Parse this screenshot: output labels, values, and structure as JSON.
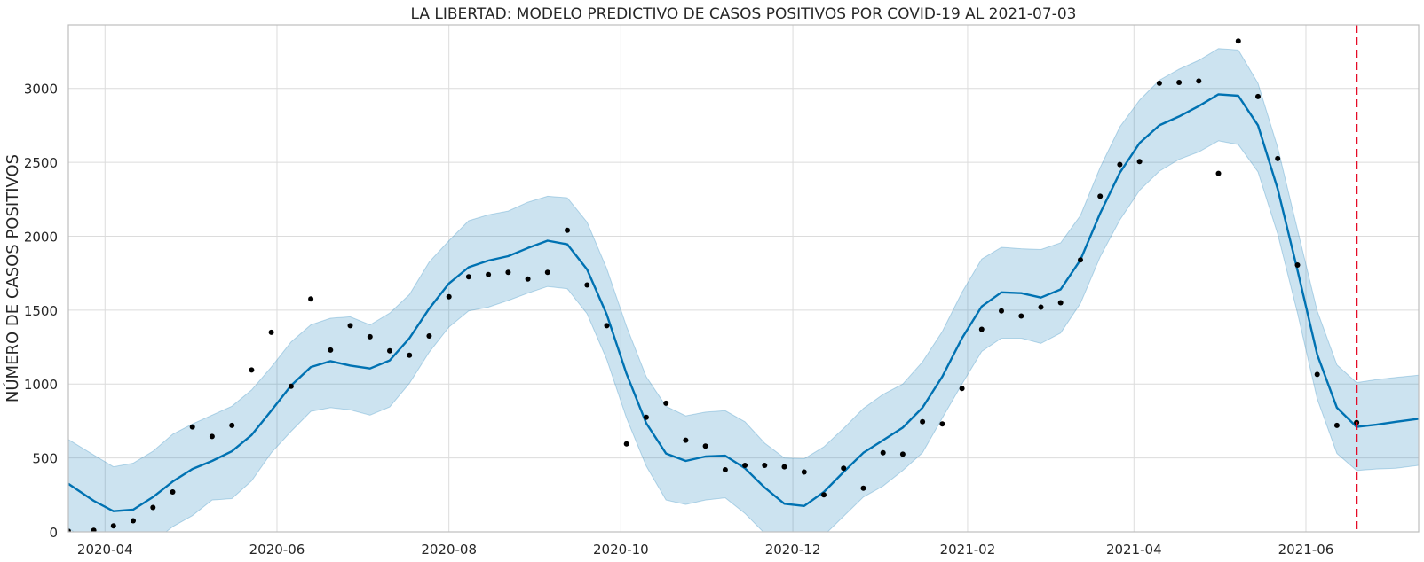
{
  "chart_data": {
    "type": "line",
    "title": "LA LIBERTAD: MODELO PREDICTIVO DE CASOS POSITIVOS POR COVID-19 AL 2021-07-03",
    "xlabel": "",
    "ylabel": "NÚMERO DE CASOS POSITIVOS",
    "x_type": "date",
    "xlim": [
      "2020-03-19",
      "2021-07-11"
    ],
    "ylim": [
      0,
      3430
    ],
    "x_ticks": [
      "2020-04-01",
      "2020-06-01",
      "2020-08-01",
      "2020-10-01",
      "2020-12-01",
      "2021-02-01",
      "2021-04-01",
      "2021-06-01"
    ],
    "x_tick_labels": [
      "2020-04",
      "2020-06",
      "2020-08",
      "2020-10",
      "2020-12",
      "2021-02",
      "2021-04",
      "2021-06"
    ],
    "y_ticks": [
      0,
      500,
      1000,
      1500,
      2000,
      2500,
      3000
    ],
    "y_tick_labels": [
      "0",
      "500",
      "1000",
      "1500",
      "2000",
      "2500",
      "3000"
    ],
    "grid": true,
    "colors": {
      "forecast_line": "#0072b2",
      "uncertainty_band": "#0072b2",
      "observed_points": "#000000",
      "cutoff_line": "#e5001e"
    },
    "cutoff_date": "2021-06-19",
    "forecast": {
      "x": [
        "2020-03-19",
        "2020-03-28",
        "2020-04-04",
        "2020-04-11",
        "2020-04-18",
        "2020-04-25",
        "2020-05-02",
        "2020-05-09",
        "2020-05-16",
        "2020-05-23",
        "2020-05-30",
        "2020-06-06",
        "2020-06-13",
        "2020-06-20",
        "2020-06-27",
        "2020-07-04",
        "2020-07-11",
        "2020-07-18",
        "2020-07-25",
        "2020-08-01",
        "2020-08-08",
        "2020-08-15",
        "2020-08-22",
        "2020-08-29",
        "2020-09-05",
        "2020-09-12",
        "2020-09-19",
        "2020-09-26",
        "2020-10-03",
        "2020-10-10",
        "2020-10-17",
        "2020-10-24",
        "2020-10-31",
        "2020-11-07",
        "2020-11-14",
        "2020-11-21",
        "2020-11-28",
        "2020-12-05",
        "2020-12-12",
        "2020-12-19",
        "2020-12-26",
        "2021-01-02",
        "2021-01-09",
        "2021-01-16",
        "2021-01-23",
        "2021-01-30",
        "2021-02-06",
        "2021-02-13",
        "2021-02-20",
        "2021-02-27",
        "2021-03-06",
        "2021-03-13",
        "2021-03-20",
        "2021-03-27",
        "2021-04-03",
        "2021-04-10",
        "2021-04-17",
        "2021-04-24",
        "2021-05-01",
        "2021-05-08",
        "2021-05-15",
        "2021-05-22",
        "2021-05-29",
        "2021-06-05",
        "2021-06-12",
        "2021-06-19",
        "2021-06-26",
        "2021-07-03",
        "2021-07-11"
      ],
      "yhat": [
        325,
        210,
        140,
        150,
        235,
        340,
        425,
        480,
        545,
        655,
        820,
        990,
        1115,
        1155,
        1125,
        1105,
        1160,
        1310,
        1510,
        1680,
        1790,
        1835,
        1865,
        1920,
        1970,
        1945,
        1775,
        1470,
        1070,
        735,
        530,
        480,
        510,
        515,
        430,
        300,
        190,
        175,
        270,
        405,
        535,
        620,
        705,
        840,
        1050,
        1310,
        1525,
        1620,
        1615,
        1585,
        1640,
        1840,
        2155,
        2430,
        2630,
        2750,
        2810,
        2880,
        2960,
        2950,
        2750,
        2320,
        1770,
        1200,
        840,
        710,
        725,
        745,
        765
      ],
      "yhat_upper": [
        625,
        520,
        440,
        465,
        545,
        660,
        730,
        790,
        850,
        960,
        1115,
        1285,
        1400,
        1445,
        1455,
        1400,
        1480,
        1605,
        1825,
        1970,
        2105,
        2145,
        2170,
        2230,
        2270,
        2260,
        2095,
        1780,
        1390,
        1050,
        850,
        785,
        810,
        820,
        745,
        600,
        500,
        495,
        575,
        700,
        835,
        930,
        1000,
        1150,
        1355,
        1620,
        1845,
        1925,
        1915,
        1910,
        1955,
        2140,
        2465,
        2740,
        2920,
        3055,
        3130,
        3190,
        3270,
        3260,
        3035,
        2600,
        2045,
        1495,
        1130,
        1010,
        1030,
        1045,
        1060
      ],
      "yhat_lower": [
        25,
        -95,
        -150,
        -145,
        -70,
        35,
        110,
        215,
        225,
        345,
        535,
        680,
        815,
        840,
        825,
        790,
        845,
        1005,
        1215,
        1385,
        1495,
        1520,
        1565,
        1615,
        1660,
        1645,
        1475,
        1165,
        770,
        445,
        215,
        185,
        215,
        230,
        125,
        -10,
        -120,
        -130,
        -25,
        105,
        235,
        310,
        415,
        535,
        770,
        1000,
        1220,
        1310,
        1310,
        1275,
        1345,
        1545,
        1860,
        2110,
        2310,
        2440,
        2520,
        2570,
        2645,
        2620,
        2435,
        2015,
        1480,
        900,
        530,
        415,
        425,
        430,
        450
      ]
    },
    "observed": {
      "x": [
        "2020-03-19",
        "2020-03-28",
        "2020-04-04",
        "2020-04-11",
        "2020-04-18",
        "2020-04-25",
        "2020-05-02",
        "2020-05-09",
        "2020-05-16",
        "2020-05-23",
        "2020-05-30",
        "2020-06-06",
        "2020-06-13",
        "2020-06-20",
        "2020-06-27",
        "2020-07-04",
        "2020-07-11",
        "2020-07-18",
        "2020-07-25",
        "2020-08-01",
        "2020-08-08",
        "2020-08-15",
        "2020-08-22",
        "2020-08-29",
        "2020-09-05",
        "2020-09-12",
        "2020-09-19",
        "2020-09-26",
        "2020-10-03",
        "2020-10-10",
        "2020-10-17",
        "2020-10-24",
        "2020-10-31",
        "2020-11-07",
        "2020-11-14",
        "2020-11-21",
        "2020-11-28",
        "2020-12-05",
        "2020-12-12",
        "2020-12-19",
        "2020-12-26",
        "2021-01-02",
        "2021-01-09",
        "2021-01-16",
        "2021-01-23",
        "2021-01-30",
        "2021-02-06",
        "2021-02-13",
        "2021-02-20",
        "2021-02-27",
        "2021-03-06",
        "2021-03-13",
        "2021-03-20",
        "2021-03-27",
        "2021-04-03",
        "2021-04-10",
        "2021-04-17",
        "2021-04-24",
        "2021-05-01",
        "2021-05-08",
        "2021-05-15",
        "2021-05-22",
        "2021-05-29",
        "2021-06-05",
        "2021-06-12",
        "2021-06-19"
      ],
      "y": [
        5,
        10,
        40,
        75,
        165,
        270,
        710,
        645,
        720,
        1095,
        1350,
        985,
        1575,
        1230,
        1395,
        1320,
        1225,
        1195,
        1325,
        1590,
        1725,
        1740,
        1755,
        1710,
        1755,
        2040,
        1670,
        1395,
        595,
        775,
        870,
        620,
        580,
        420,
        450,
        450,
        440,
        405,
        250,
        430,
        295,
        535,
        525,
        745,
        730,
        970,
        1370,
        1495,
        1460,
        1520,
        1550,
        1840,
        2270,
        2485,
        2505,
        3035,
        3040,
        3050,
        2425,
        3320,
        2945,
        2525,
        1805,
        1065,
        720,
        740
      ]
    }
  }
}
